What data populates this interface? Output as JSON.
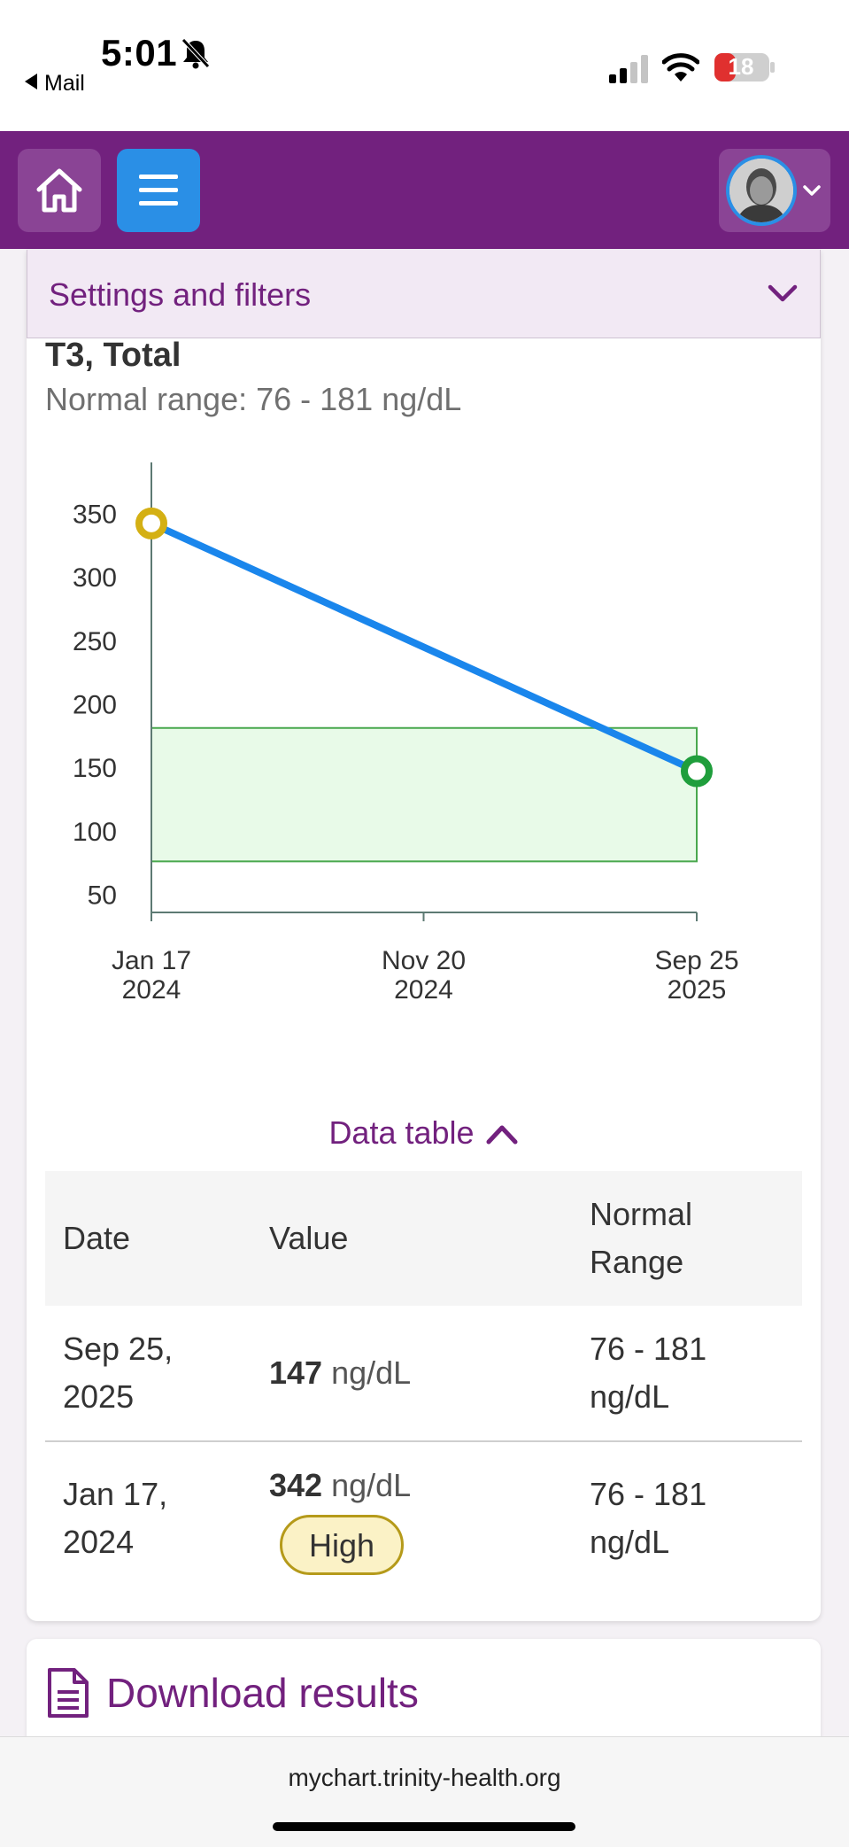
{
  "status_bar": {
    "time": "5:01",
    "back_app": "Mail",
    "battery": "18",
    "icons": [
      "bell-slash-icon",
      "signal-icon",
      "wifi-icon",
      "battery-charging-icon"
    ]
  },
  "top_nav": {
    "icons": [
      "home-icon",
      "menu-icon",
      "avatar",
      "chevron-down-icon"
    ],
    "colors": {
      "bar": "#72217e",
      "menu_button": "#2a8fe6"
    }
  },
  "filters": {
    "label": "Settings and filters"
  },
  "test": {
    "name": "T3, Total",
    "normal_range_text": "Normal range: 76 - 181 ng/dL"
  },
  "chart_data": {
    "type": "line",
    "x": [
      "2024-01-17",
      "2025-09-25"
    ],
    "x_tick_labels": [
      {
        "line1": "Jan 17",
        "line2": "2024"
      },
      {
        "line1": "Nov 20",
        "line2": "2024"
      },
      {
        "line1": "Sep 25",
        "line2": "2025"
      }
    ],
    "x_ticks": [
      "2024-01-17",
      "2024-11-20",
      "2025-09-25"
    ],
    "series": [
      {
        "values": [
          342,
          147
        ]
      }
    ],
    "point_colors": [
      "#d4b014",
      "#1f9e3c"
    ],
    "normal_band": [
      76,
      181
    ],
    "yticks": [
      50,
      100,
      150,
      200,
      250,
      300,
      350
    ],
    "ylim": [
      40,
      390
    ],
    "line_color": "#1a86ec",
    "band_fill": "#e8fae8",
    "band_stroke": "#49a84e",
    "grid": false,
    "title": "",
    "xlabel": "",
    "ylabel": ""
  },
  "data_table": {
    "toggle_label": "Data table",
    "headers": {
      "date": "Date",
      "value": "Value",
      "range_l1": "Normal",
      "range_l2": "Range"
    },
    "rows": [
      {
        "date_l1": "Sep 25,",
        "date_l2": "2025",
        "value": "147",
        "unit": "ng/dL",
        "badge": "",
        "range_l1": "76 - 181",
        "range_l2": "ng/dL"
      },
      {
        "date_l1": "Jan 17,",
        "date_l2": "2024",
        "value": "342",
        "unit": "ng/dL",
        "badge": "High",
        "range_l1": "76 - 181",
        "range_l2": "ng/dL"
      }
    ]
  },
  "download": {
    "label": "Download results",
    "icon": "document-icon"
  },
  "browser": {
    "url": "mychart.trinity-health.org"
  }
}
